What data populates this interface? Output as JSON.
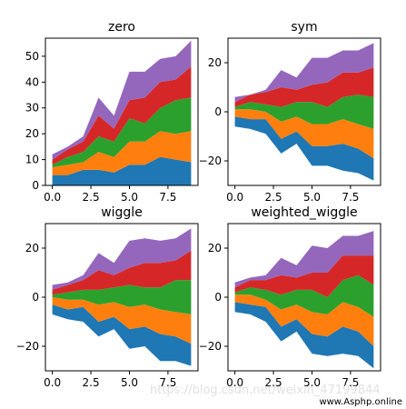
{
  "chart_data": [
    {
      "type": "area",
      "title": "zero",
      "x": [
        0,
        1,
        2,
        3,
        4,
        5,
        6,
        7,
        8,
        9
      ],
      "ylim": [
        0,
        57
      ],
      "yticks": [
        0,
        10,
        20,
        30,
        40,
        50
      ],
      "xticks": [
        0.0,
        2.5,
        5.0,
        7.5
      ],
      "bands": [
        {
          "color": "#1f77b4",
          "lower": [
            0,
            0,
            0,
            0,
            0,
            0,
            0,
            0,
            0,
            0
          ],
          "upper": [
            4,
            4,
            6,
            6,
            5,
            8,
            8,
            11,
            10,
            9
          ]
        },
        {
          "color": "#ff7f0e",
          "lower": [
            4,
            4,
            6,
            6,
            5,
            8,
            8,
            11,
            10,
            9
          ],
          "upper": [
            7,
            8,
            9,
            13,
            11,
            17,
            17,
            21,
            20,
            21
          ]
        },
        {
          "color": "#2ca02c",
          "lower": [
            7,
            8,
            9,
            13,
            11,
            17,
            17,
            21,
            20,
            21
          ],
          "upper": [
            8,
            11,
            13,
            19,
            17,
            26,
            24,
            30,
            33,
            34
          ]
        },
        {
          "color": "#d62728",
          "lower": [
            8,
            11,
            13,
            19,
            17,
            26,
            24,
            30,
            33,
            34
          ],
          "upper": [
            10,
            14,
            17,
            27,
            22,
            33,
            34,
            40,
            41,
            46
          ]
        },
        {
          "color": "#9467bd",
          "lower": [
            10,
            14,
            17,
            27,
            22,
            33,
            34,
            40,
            41,
            46
          ],
          "upper": [
            12,
            15,
            19,
            34,
            27,
            44,
            44,
            49,
            50,
            56
          ]
        }
      ]
    },
    {
      "type": "area",
      "title": "sym",
      "x": [
        0,
        1,
        2,
        3,
        4,
        5,
        6,
        7,
        8,
        9
      ],
      "ylim": [
        -30,
        30
      ],
      "yticks": [
        -20,
        0,
        20
      ],
      "xticks": [
        0.0,
        2.5,
        5.0,
        7.5
      ],
      "bands": [
        {
          "color": "#1f77b4",
          "lower": [
            -6,
            -7,
            -9,
            -17,
            -13,
            -22,
            -22,
            -24,
            -25,
            -28
          ],
          "upper": [
            -2,
            -3,
            -3,
            -11,
            -8,
            -14,
            -14,
            -13,
            -15,
            -19
          ]
        },
        {
          "color": "#ff7f0e",
          "lower": [
            -2,
            -3,
            -3,
            -11,
            -8,
            -14,
            -14,
            -13,
            -15,
            -19
          ],
          "upper": [
            1,
            1,
            0,
            -4,
            -2,
            -5,
            -5,
            -3,
            -5,
            -7
          ]
        },
        {
          "color": "#2ca02c",
          "lower": [
            1,
            1,
            0,
            -4,
            -2,
            -5,
            -5,
            -3,
            -5,
            -7
          ],
          "upper": [
            2,
            4,
            3,
            2,
            4,
            4,
            2,
            6,
            7,
            6
          ]
        },
        {
          "color": "#d62728",
          "lower": [
            2,
            4,
            3,
            2,
            4,
            4,
            2,
            6,
            7,
            6
          ],
          "upper": [
            4,
            7,
            8,
            10,
            9,
            11,
            12,
            16,
            16,
            18
          ]
        },
        {
          "color": "#9467bd",
          "lower": [
            4,
            7,
            8,
            10,
            9,
            11,
            12,
            16,
            16,
            18
          ],
          "upper": [
            6,
            7,
            9,
            17,
            14,
            22,
            22,
            25,
            25,
            28
          ]
        }
      ]
    },
    {
      "type": "area",
      "title": "wiggle",
      "x": [
        0,
        1,
        2,
        3,
        4,
        5,
        6,
        7,
        8,
        9
      ],
      "ylim": [
        -30,
        30
      ],
      "yticks": [
        -20,
        0,
        20
      ],
      "xticks": [
        0.0,
        2.5,
        5.0,
        7.5
      ],
      "bands": [
        {
          "color": "#1f77b4",
          "lower": [
            -7,
            -9,
            -10,
            -16,
            -13,
            -21,
            -20,
            -26,
            -26,
            -28
          ],
          "upper": [
            -3,
            -5,
            -4,
            -10,
            -8,
            -13,
            -12,
            -15,
            -16,
            -19
          ]
        },
        {
          "color": "#ff7f0e",
          "lower": [
            -3,
            -5,
            -4,
            -10,
            -8,
            -13,
            -12,
            -15,
            -16,
            -19
          ],
          "upper": [
            0,
            -1,
            -1,
            -3,
            -2,
            -4,
            -3,
            -5,
            -6,
            -7
          ]
        },
        {
          "color": "#2ca02c",
          "lower": [
            0,
            -1,
            -1,
            -3,
            -2,
            -4,
            -3,
            -5,
            -6,
            -7
          ],
          "upper": [
            1,
            2,
            3,
            3,
            4,
            5,
            4,
            4,
            7,
            7
          ]
        },
        {
          "color": "#d62728",
          "lower": [
            1,
            2,
            3,
            3,
            4,
            5,
            4,
            4,
            7,
            7
          ],
          "upper": [
            3,
            5,
            7,
            11,
            9,
            12,
            14,
            14,
            15,
            19
          ]
        },
        {
          "color": "#9467bd",
          "lower": [
            3,
            5,
            7,
            11,
            9,
            12,
            14,
            14,
            15,
            19
          ],
          "upper": [
            5,
            6,
            9,
            18,
            14,
            23,
            24,
            23,
            24,
            28
          ]
        }
      ]
    },
    {
      "type": "area",
      "title": "weighted_wiggle",
      "x": [
        0,
        1,
        2,
        3,
        4,
        5,
        6,
        7,
        8,
        9
      ],
      "ylim": [
        -30,
        30
      ],
      "yticks": [
        -20,
        0,
        20
      ],
      "xticks": [
        0.0,
        2.5,
        5.0,
        7.5
      ],
      "bands": [
        {
          "color": "#1f77b4",
          "lower": [
            -6,
            -7,
            -10,
            -18,
            -14,
            -23,
            -24,
            -23,
            -24,
            -29
          ],
          "upper": [
            -2,
            -3,
            -4,
            -12,
            -9,
            -15,
            -16,
            -12,
            -14,
            -20
          ]
        },
        {
          "color": "#ff7f0e",
          "lower": [
            -2,
            -3,
            -4,
            -12,
            -9,
            -15,
            -16,
            -12,
            -14,
            -20
          ],
          "upper": [
            1,
            1,
            -1,
            -5,
            -3,
            -6,
            -7,
            -2,
            -4,
            -8
          ]
        },
        {
          "color": "#2ca02c",
          "lower": [
            1,
            1,
            -1,
            -5,
            -3,
            -6,
            -7,
            -2,
            -4,
            -8
          ],
          "upper": [
            2,
            4,
            3,
            1,
            3,
            3,
            0,
            7,
            9,
            5
          ]
        },
        {
          "color": "#d62728",
          "lower": [
            2,
            4,
            3,
            1,
            3,
            3,
            0,
            7,
            9,
            5
          ],
          "upper": [
            4,
            7,
            7,
            9,
            8,
            10,
            10,
            17,
            17,
            17
          ]
        },
        {
          "color": "#9467bd",
          "lower": [
            4,
            7,
            7,
            9,
            8,
            10,
            10,
            17,
            17,
            17
          ],
          "upper": [
            6,
            8,
            9,
            16,
            13,
            21,
            20,
            25,
            25,
            27
          ]
        }
      ]
    }
  ],
  "watermark": "https://blog.csdn.net/weixin_47199844",
  "site_mark": "www.Asphp.online"
}
